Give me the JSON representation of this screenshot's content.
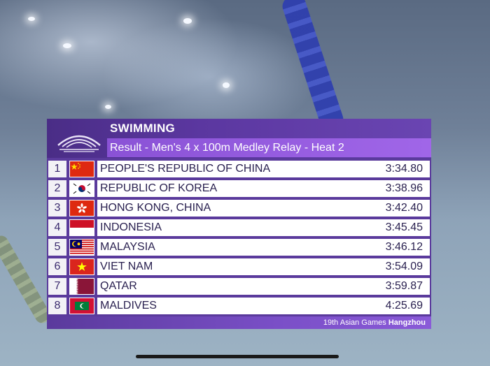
{
  "header": {
    "sport": "SWIMMING",
    "event": "Result - Men's 4 x 100m Medley Relay - Heat 2"
  },
  "results": [
    {
      "rank": "1",
      "country": "PEOPLE'S REPUBLIC OF CHINA",
      "time": "3:34.80",
      "flag": "china-flag-icon"
    },
    {
      "rank": "2",
      "country": "REPUBLIC OF KOREA",
      "time": "3:38.96",
      "flag": "korea-flag-icon"
    },
    {
      "rank": "3",
      "country": "HONG KONG, CHINA",
      "time": "3:42.40",
      "flag": "hong-kong-flag-icon"
    },
    {
      "rank": "4",
      "country": "INDONESIA",
      "time": "3:45.45",
      "flag": "indonesia-flag-icon"
    },
    {
      "rank": "5",
      "country": "MALAYSIA",
      "time": "3:46.12",
      "flag": "malaysia-flag-icon"
    },
    {
      "rank": "6",
      "country": "VIET NAM",
      "time": "3:54.09",
      "flag": "vietnam-flag-icon"
    },
    {
      "rank": "7",
      "country": "QATAR",
      "time": "3:59.87",
      "flag": "qatar-flag-icon"
    },
    {
      "rank": "8",
      "country": "MALDIVES",
      "time": "4:25.69",
      "flag": "maldives-flag-icon"
    }
  ],
  "footer": {
    "games": "19th Asian Games",
    "city": "Hangzhou"
  },
  "colors": {
    "header_purple": "#5b37a0",
    "event_bar_purple": "#9a60e2",
    "text_dark": "#2a2150"
  }
}
